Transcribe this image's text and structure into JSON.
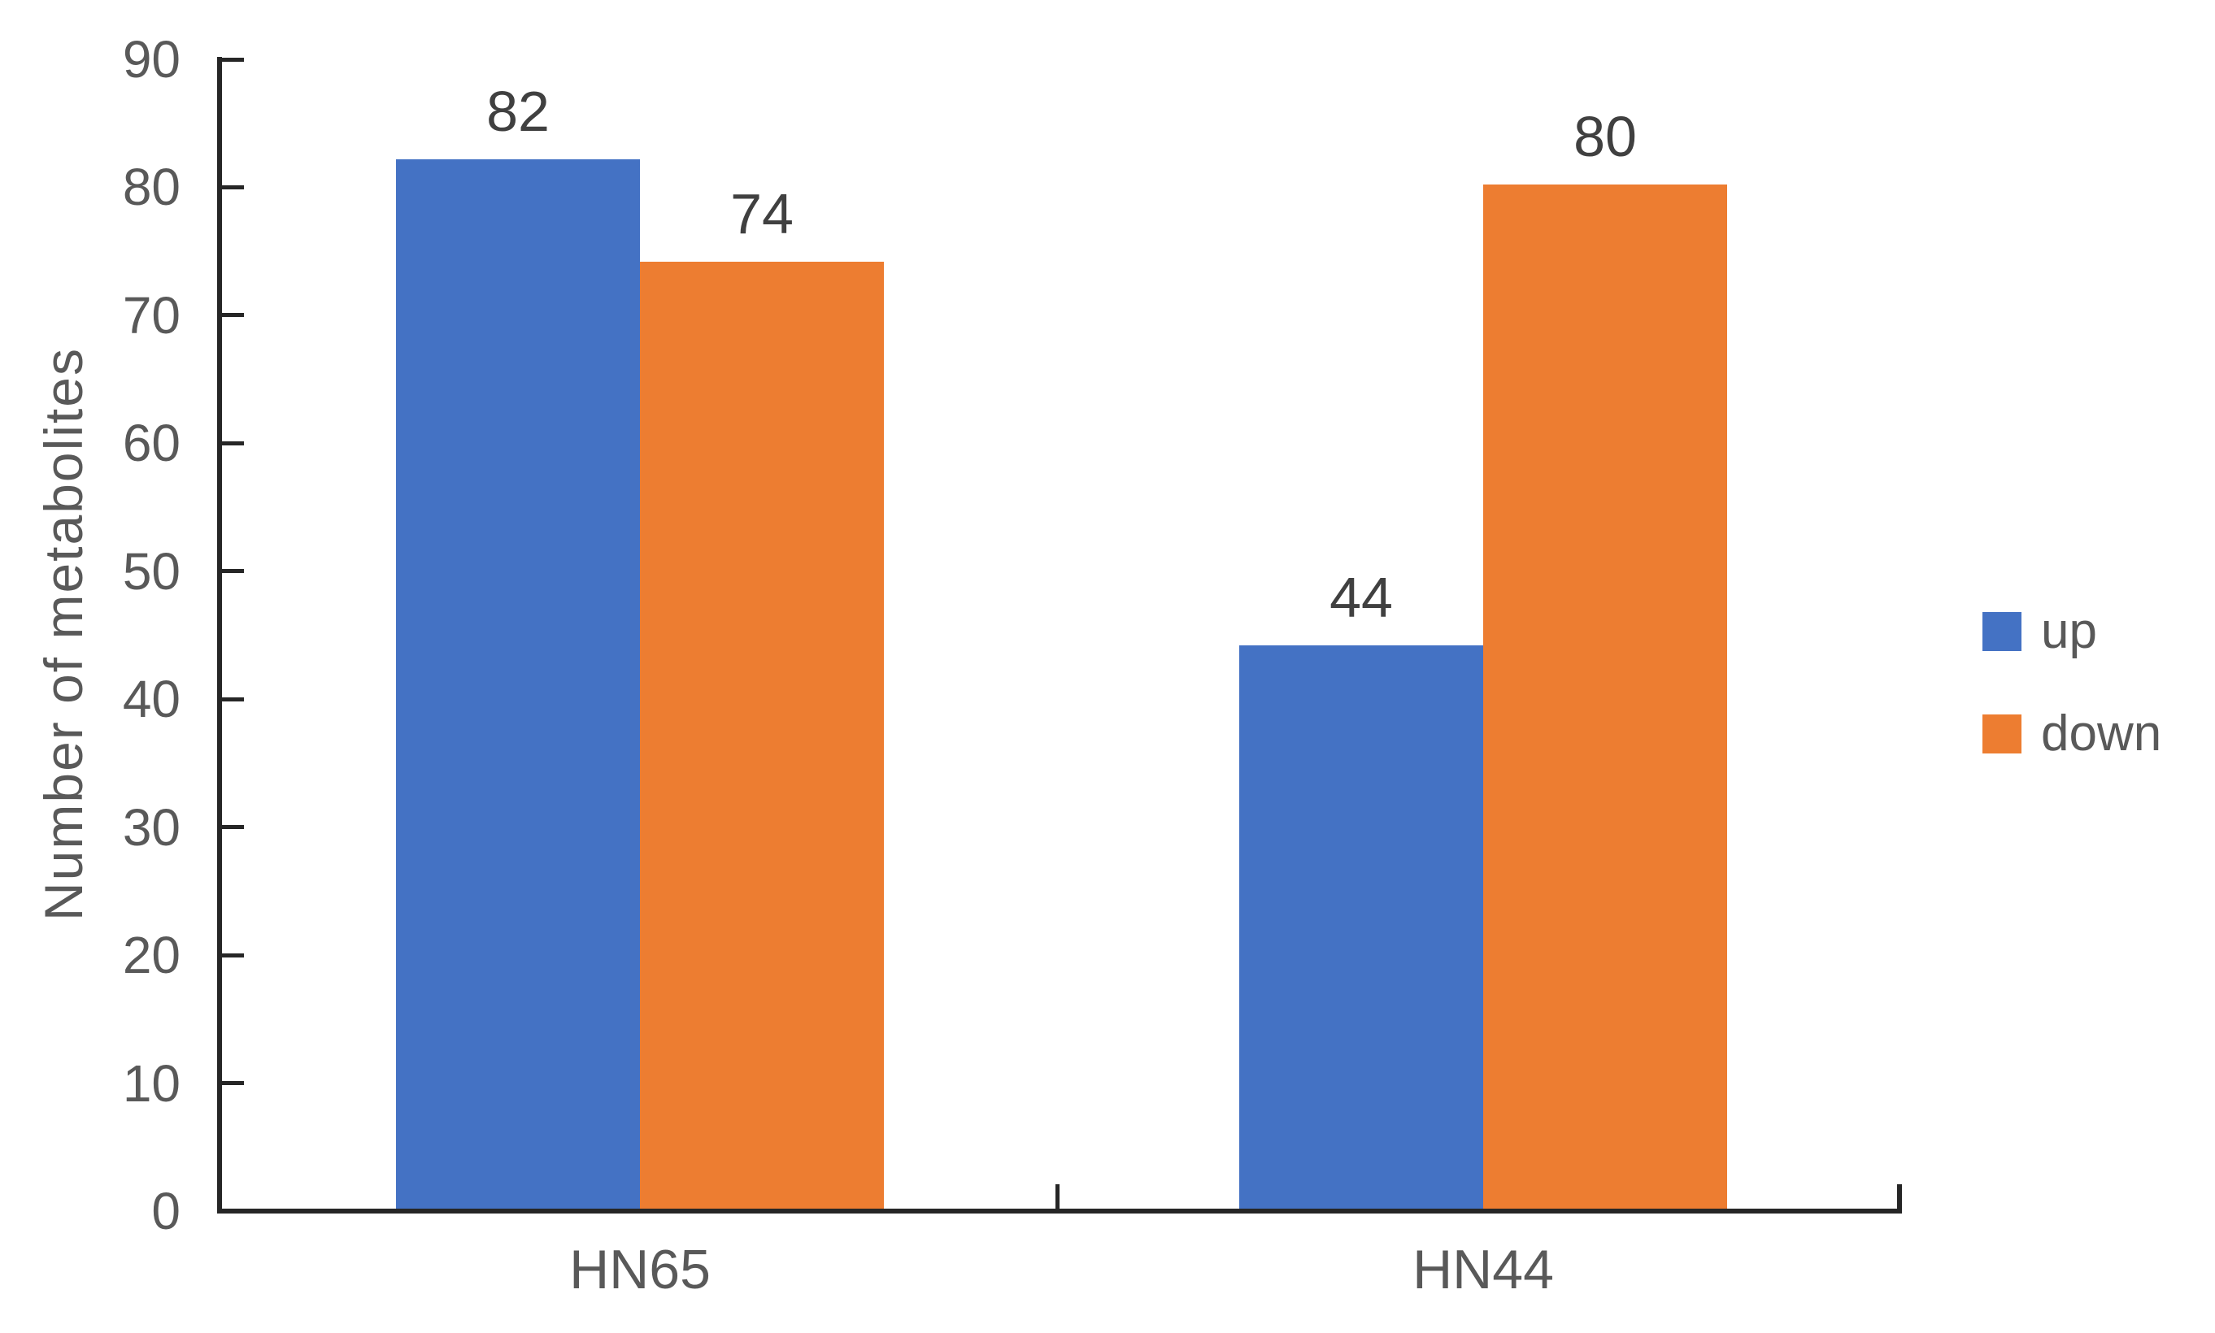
{
  "chart_data": {
    "type": "bar",
    "title": "",
    "categories": [
      "HN65",
      "HN44"
    ],
    "series": [
      {
        "name": "up",
        "color": "#4472C4",
        "values": [
          82,
          44
        ]
      },
      {
        "name": "down",
        "color": "#ED7D31",
        "values": [
          74,
          80
        ]
      }
    ],
    "xlabel": "",
    "ylabel": "Number of metabolites",
    "ylim": [
      0,
      90
    ],
    "y_ticks": [
      0,
      10,
      20,
      30,
      40,
      50,
      60,
      70,
      80,
      90
    ],
    "grid": false,
    "data_labels": true,
    "legend_position": "right",
    "colors": {
      "axis": "#262626",
      "tick_label": "#595959",
      "data_label": "#404040"
    }
  }
}
